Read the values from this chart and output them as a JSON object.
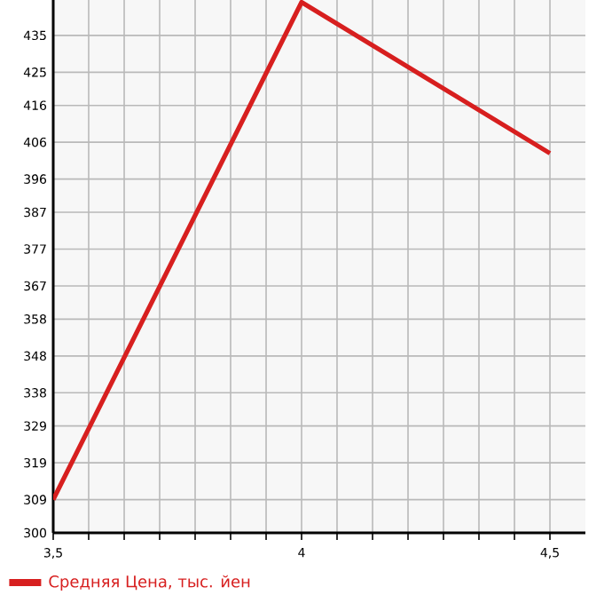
{
  "chart_data": {
    "type": "line",
    "x": [
      3.5,
      4,
      4.5
    ],
    "series": [
      {
        "name": "Средняя Цена, тыс. йен",
        "color": "#d71f1f",
        "values": [
          309,
          444,
          403
        ]
      }
    ],
    "xlim": [
      3.5,
      4.5714
    ],
    "xticks": [
      {
        "value": 3.5,
        "label": "3,5"
      },
      {
        "value": 3.5714,
        "label": null
      },
      {
        "value": 3.6429,
        "label": null
      },
      {
        "value": 3.7143,
        "label": null
      },
      {
        "value": 3.7857,
        "label": null
      },
      {
        "value": 3.8571,
        "label": null
      },
      {
        "value": 3.9286,
        "label": null
      },
      4,
      {
        "value": 4.0714,
        "label": null
      },
      {
        "value": 4.1429,
        "label": null
      },
      {
        "value": 4.2143,
        "label": null
      },
      {
        "value": 4.2857,
        "label": null
      },
      {
        "value": 4.3571,
        "label": null
      },
      {
        "value": 4.4286,
        "label": null
      },
      {
        "value": 4.5,
        "label": "4,5"
      }
    ],
    "ylim": [
      300,
      444.6
    ],
    "yticks": [
      300,
      309,
      319,
      329,
      338,
      348,
      358,
      367,
      377,
      387,
      396,
      406,
      416,
      425,
      435
    ],
    "grid": true,
    "legend": "bottom left",
    "marker": "none",
    "line_style": "solid"
  }
}
